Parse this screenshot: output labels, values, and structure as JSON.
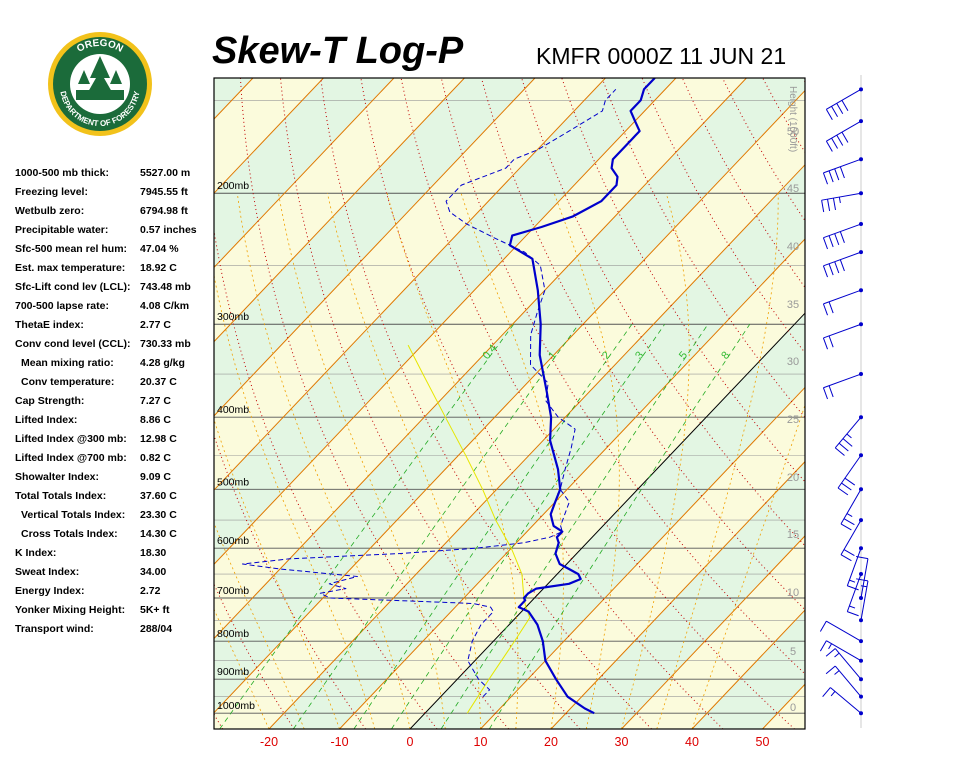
{
  "header": {
    "title": "Skew-T Log-P",
    "station_line": "KMFR 0000Z 11 JUN 21"
  },
  "logo": {
    "top_text": "OREGON",
    "bottom_text": "DEPARTMENT OF FORESTRY",
    "colors": {
      "ring": "#f2c21b",
      "field": "#1b6b3a",
      "text": "#ffffff"
    }
  },
  "indices": [
    {
      "label": "1000-500 mb thick:",
      "value": "5527.00 m",
      "indent": false
    },
    {
      "label": "Freezing level:",
      "value": "7945.55 ft",
      "indent": false
    },
    {
      "label": "Wetbulb zero:",
      "value": "6794.98 ft",
      "indent": false
    },
    {
      "label": "Precipitable water:",
      "value": "0.57 inches",
      "indent": false
    },
    {
      "label": "Sfc-500 mean rel hum:",
      "value": "47.04 %",
      "indent": false
    },
    {
      "label": "Est. max temperature:",
      "value": "18.92 C",
      "indent": false
    },
    {
      "label": "Sfc-Lift cond lev (LCL):",
      "value": "743.48 mb",
      "indent": false
    },
    {
      "label": "700-500 lapse rate:",
      "value": "4.08 C/km",
      "indent": false
    },
    {
      "label": "ThetaE index:",
      "value": "2.77 C",
      "indent": false
    },
    {
      "label": "Conv cond level (CCL):",
      "value": "730.33 mb",
      "indent": false
    },
    {
      "label": "Mean mixing ratio:",
      "value": "4.28 g/kg",
      "indent": true
    },
    {
      "label": "Conv temperature:",
      "value": "20.37 C",
      "indent": true
    },
    {
      "label": "Cap Strength:",
      "value": "7.27 C",
      "indent": false
    },
    {
      "label": "Lifted Index:",
      "value": "8.86 C",
      "indent": false
    },
    {
      "label": "Lifted Index @300 mb:",
      "value": "12.98 C",
      "indent": false
    },
    {
      "label": "Lifted Index @700 mb:",
      "value": "0.82 C",
      "indent": false
    },
    {
      "label": "Showalter Index:",
      "value": "9.09 C",
      "indent": false
    },
    {
      "label": "Total Totals Index:",
      "value": "37.60 C",
      "indent": false
    },
    {
      "label": "Vertical Totals Index:",
      "value": "23.30 C",
      "indent": true
    },
    {
      "label": "Cross Totals Index:",
      "value": "14.30 C",
      "indent": true
    },
    {
      "label": "K Index:",
      "value": "18.30",
      "indent": false
    },
    {
      "label": "Sweat Index:",
      "value": "34.00",
      "indent": false
    },
    {
      "label": "Energy Index:",
      "value": "2.72",
      "indent": false
    },
    {
      "label": "Yonker Mixing Height:",
      "value": "5K+ ft",
      "indent": false
    },
    {
      "label": "Transport wind:",
      "value": "288/04",
      "indent": false
    }
  ],
  "chart_data": {
    "type": "line",
    "title": "Skew-T Log-P",
    "subtitle": "KMFR 0000Z 11 JUN 21",
    "xlabel": "",
    "ylabel": "",
    "x_axis": {
      "range": [
        -29,
        56
      ],
      "ticks": [
        -20,
        -10,
        0,
        10,
        20,
        30,
        40,
        50
      ]
    },
    "y_axis": {
      "scale": "log",
      "range_mb": [
        1050,
        140
      ],
      "ticks": [
        {
          "p": 1000,
          "label": "1000mb"
        },
        {
          "p": 900,
          "label": "900mb"
        },
        {
          "p": 800,
          "label": "800mb"
        },
        {
          "p": 700,
          "label": "700mb"
        },
        {
          "p": 600,
          "label": "600mb"
        },
        {
          "p": 500,
          "label": "500mb"
        },
        {
          "p": 400,
          "label": "400mb"
        },
        {
          "p": 300,
          "label": "300mb"
        },
        {
          "p": 200,
          "label": "200mb"
        }
      ]
    },
    "height_axis": {
      "label": "Height (1000ft)",
      "ticks": [
        "0",
        "5",
        "10",
        "15",
        "20",
        "25",
        "30",
        "35",
        "40",
        "45",
        "50"
      ]
    },
    "mixing_ratio_labels": [
      "0.4",
      "1",
      "2",
      "3",
      "5",
      "8"
    ],
    "colors": {
      "temperature": "#0000cc",
      "dewpoint": "#0000cc",
      "parcel": "#e6e600",
      "isotherm": "#e07800",
      "dry_adiabat": "#c00000",
      "moist_adiabat": "#f0a000",
      "mixing_ratio": "#22aa22",
      "band_green": "#e3f6e3",
      "band_yellow": "#fbfbdc",
      "barb": "#0000cc"
    },
    "series": [
      {
        "name": "",
        "key": "temperature",
        "style": "solid",
        "points": [
          [
            1000,
            24
          ],
          [
            985,
            22
          ],
          [
            950,
            18
          ],
          [
            900,
            14
          ],
          [
            850,
            10
          ],
          [
            800,
            7
          ],
          [
            760,
            4
          ],
          [
            730,
            1
          ],
          [
            720,
            -1
          ],
          [
            710,
            -1
          ],
          [
            705,
            -1
          ],
          [
            700,
            -1.5
          ],
          [
            690,
            -1.5
          ],
          [
            680,
            -1
          ],
          [
            670,
            3
          ],
          [
            660,
            4
          ],
          [
            650,
            3
          ],
          [
            640,
            1
          ],
          [
            630,
            -1
          ],
          [
            620,
            -2
          ],
          [
            610,
            -3
          ],
          [
            600,
            -3.5
          ],
          [
            590,
            -4
          ],
          [
            580,
            -5
          ],
          [
            570,
            -5
          ],
          [
            560,
            -7
          ],
          [
            550,
            -8
          ],
          [
            540,
            -9
          ],
          [
            520,
            -10
          ],
          [
            500,
            -11
          ],
          [
            470,
            -14
          ],
          [
            430,
            -19
          ],
          [
            400,
            -22
          ],
          [
            370,
            -26
          ],
          [
            330,
            -32
          ],
          [
            300,
            -36
          ],
          [
            270,
            -41
          ],
          [
            245,
            -46
          ],
          [
            235,
            -51
          ],
          [
            228,
            -52
          ],
          [
            222,
            -49
          ],
          [
            215,
            -46
          ],
          [
            210,
            -45
          ],
          [
            205,
            -44
          ],
          [
            200,
            -44
          ],
          [
            195,
            -44
          ],
          [
            190,
            -45
          ],
          [
            185,
            -47
          ],
          [
            180,
            -48
          ],
          [
            175,
            -48
          ],
          [
            170,
            -48
          ],
          [
            165,
            -48
          ],
          [
            160,
            -50
          ],
          [
            155,
            -52
          ],
          [
            150,
            -52
          ],
          [
            145,
            -53
          ],
          [
            140,
            -53
          ]
        ]
      },
      {
        "name": "",
        "key": "dewpoint",
        "style": "dashed",
        "points": [
          [
            950,
            6
          ],
          [
            930,
            6
          ],
          [
            900,
            3
          ],
          [
            850,
            -1
          ],
          [
            800,
            -3
          ],
          [
            760,
            -4
          ],
          [
            730,
            -4
          ],
          [
            720,
            -5
          ],
          [
            712,
            -8
          ],
          [
            705,
            -20
          ],
          [
            700,
            -29
          ],
          [
            690,
            -31
          ],
          [
            680,
            -28
          ],
          [
            670,
            -31
          ],
          [
            655,
            -28
          ],
          [
            640,
            -40
          ],
          [
            630,
            -46
          ],
          [
            620,
            -40
          ],
          [
            610,
            -25
          ],
          [
            600,
            -15
          ],
          [
            590,
            -9
          ],
          [
            580,
            -6
          ],
          [
            570,
            -5
          ],
          [
            560,
            -6
          ],
          [
            540,
            -7
          ],
          [
            520,
            -8
          ],
          [
            500,
            -11
          ],
          [
            470,
            -13
          ],
          [
            440,
            -15
          ],
          [
            415,
            -17
          ],
          [
            400,
            -21
          ],
          [
            380,
            -25
          ],
          [
            360,
            -27
          ],
          [
            340,
            -32
          ],
          [
            310,
            -36
          ],
          [
            290,
            -38
          ],
          [
            270,
            -40
          ],
          [
            250,
            -44
          ],
          [
            240,
            -48
          ],
          [
            230,
            -54
          ],
          [
            220,
            -60
          ],
          [
            212,
            -64
          ],
          [
            205,
            -66
          ],
          [
            200,
            -66
          ],
          [
            195,
            -66
          ],
          [
            185,
            -62
          ],
          [
            180,
            -62
          ],
          [
            175,
            -60
          ],
          [
            170,
            -59
          ],
          [
            165,
            -58
          ],
          [
            155,
            -56
          ],
          [
            150,
            -57
          ],
          [
            145,
            -57
          ]
        ]
      },
      {
        "name": "",
        "key": "parcel",
        "style": "solid",
        "points": [
          [
            1000,
            6
          ],
          [
            900,
            4.5
          ],
          [
            800,
            3
          ],
          [
            744,
            2
          ],
          [
            720,
            0
          ],
          [
            700,
            -1.5
          ],
          [
            650,
            -5
          ],
          [
            600,
            -10
          ],
          [
            550,
            -16
          ],
          [
            500,
            -22
          ],
          [
            450,
            -29
          ],
          [
            400,
            -37
          ],
          [
            350,
            -46
          ],
          [
            320,
            -52
          ]
        ]
      }
    ],
    "wind_barbs_note": "wind barbs shown along right margin",
    "wind_barbs": [
      {
        "p": 1000,
        "dir": 310,
        "spd": 15
      },
      {
        "p": 950,
        "dir": 320,
        "spd": 15
      },
      {
        "p": 900,
        "dir": 320,
        "spd": 15
      },
      {
        "p": 850,
        "dir": 300,
        "spd": 15
      },
      {
        "p": 800,
        "dir": 300,
        "spd": 10
      },
      {
        "p": 750,
        "dir": 10,
        "spd": 15
      },
      {
        "p": 700,
        "dir": 10,
        "spd": 10
      },
      {
        "p": 650,
        "dir": 200,
        "spd": 15
      },
      {
        "p": 600,
        "dir": 200,
        "spd": 15
      },
      {
        "p": 550,
        "dir": 210,
        "spd": 20
      },
      {
        "p": 500,
        "dir": 210,
        "spd": 25
      },
      {
        "p": 450,
        "dir": 215,
        "spd": 30
      },
      {
        "p": 400,
        "dir": 220,
        "spd": 35
      },
      {
        "p": 350,
        "dir": 250,
        "spd": 20
      },
      {
        "p": 300,
        "dir": 250,
        "spd": 20
      },
      {
        "p": 270,
        "dir": 250,
        "spd": 20
      },
      {
        "p": 240,
        "dir": 250,
        "spd": 40
      },
      {
        "p": 220,
        "dir": 250,
        "spd": 40
      },
      {
        "p": 200,
        "dir": 260,
        "spd": 35
      },
      {
        "p": 180,
        "dir": 250,
        "spd": 40
      },
      {
        "p": 160,
        "dir": 240,
        "spd": 40
      },
      {
        "p": 145,
        "dir": 240,
        "spd": 40
      }
    ]
  }
}
